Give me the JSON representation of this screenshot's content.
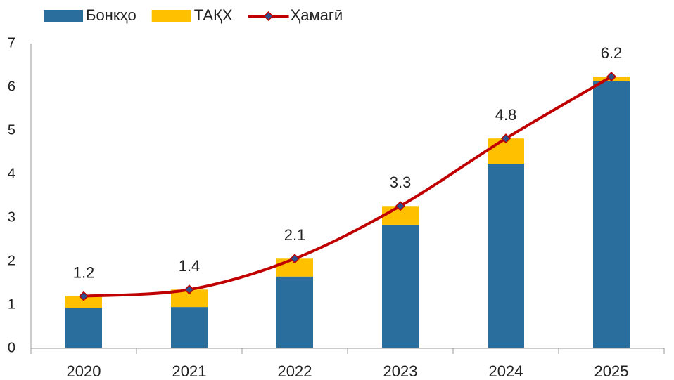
{
  "chart_data": {
    "type": "bar",
    "stacked": true,
    "categories": [
      "2020",
      "2021",
      "2022",
      "2023",
      "2024",
      "2025"
    ],
    "series": [
      {
        "name": "Бонкҳо",
        "type": "bar",
        "color": "#2a6e9d",
        "values": [
          0.93,
          0.95,
          1.65,
          2.84,
          4.24,
          6.13
        ]
      },
      {
        "name": "ТАҚХ",
        "type": "bar",
        "color": "#ffc000",
        "values": [
          0.27,
          0.4,
          0.41,
          0.43,
          0.58,
          0.11
        ]
      },
      {
        "name": "Ҳамагӣ",
        "type": "line",
        "color": "#c00000",
        "marker_color": "#2a4f8a",
        "values": [
          1.2,
          1.35,
          2.06,
          3.27,
          4.82,
          6.24
        ],
        "value_labels": [
          "1.2",
          "1.4",
          "2.1",
          "3.3",
          "4.8",
          "6.2"
        ]
      }
    ],
    "ylim": [
      0,
      7
    ],
    "yticks": [
      0,
      1,
      2,
      3,
      4,
      5,
      6,
      7
    ],
    "grid": false,
    "legend": "top"
  }
}
